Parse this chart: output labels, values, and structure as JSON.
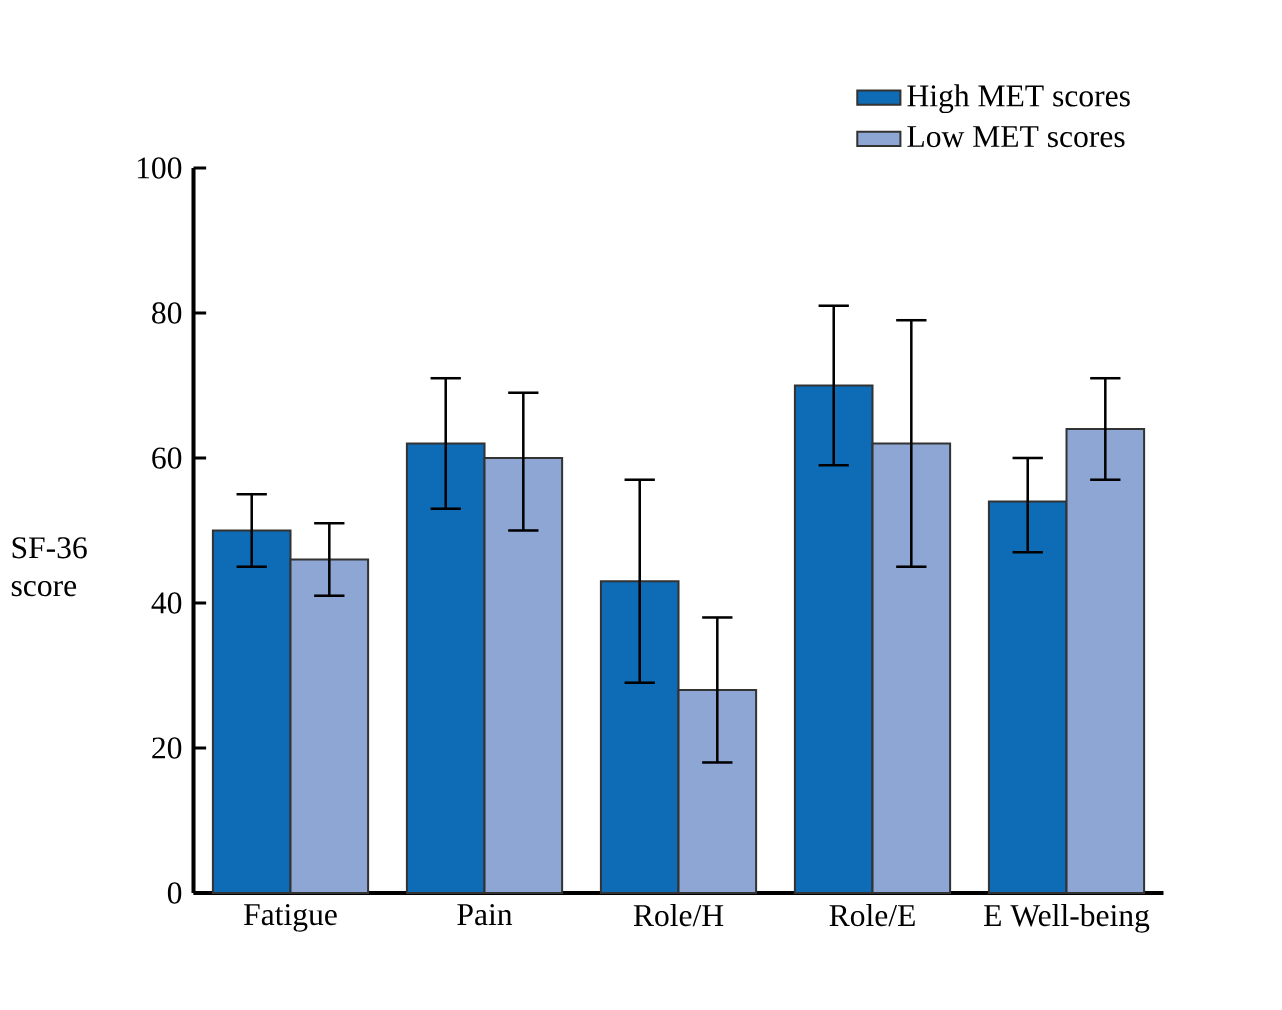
{
  "chart_data": {
    "type": "bar",
    "categories": [
      "Fatigue",
      "Pain",
      "Role/H",
      "Role/E",
      "E Well-being"
    ],
    "ylabel": "SF-36 score",
    "ylim": [
      0,
      100
    ],
    "yticks": [
      0,
      20,
      40,
      60,
      80,
      100
    ],
    "legend": "top right",
    "grid": false,
    "series": [
      {
        "name": "High MET scores",
        "color": "#0e6bb5",
        "values": [
          50,
          62,
          43,
          70,
          54
        ],
        "errors": [
          [
            45,
            55
          ],
          [
            53,
            71
          ],
          [
            29,
            57
          ],
          [
            59,
            81
          ],
          [
            47,
            60
          ]
        ]
      },
      {
        "name": "Low MET scores",
        "color": "#8ea6d4",
        "values": [
          46,
          60,
          28,
          62,
          64
        ],
        "errors": [
          [
            41,
            51
          ],
          [
            50,
            69
          ],
          [
            18,
            38
          ],
          [
            45,
            79
          ],
          [
            57,
            71
          ]
        ]
      }
    ]
  }
}
